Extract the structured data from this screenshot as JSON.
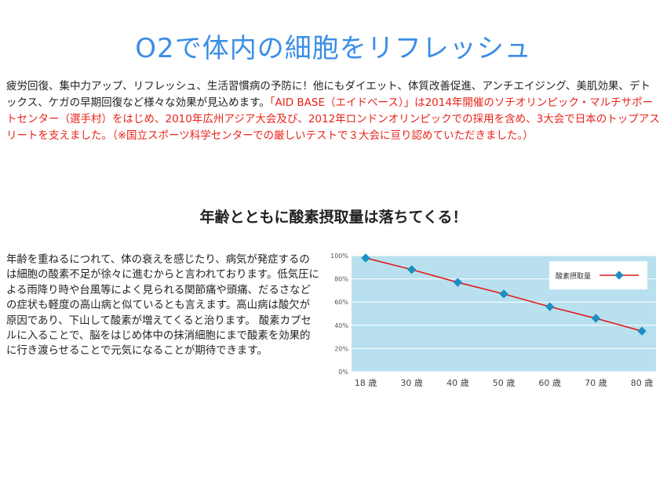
{
  "header": {
    "title": "O2で体内の細胞をリフレッシュ"
  },
  "intro": {
    "text_black": "疲労回復、集中力アップ、リフレッシュ、生活習慣病の予防に！他にもダイエット、体質改善促進、アンチエイジング、美肌効果、デトックス、ケガの早期回復など様々な効果が見込めます。",
    "text_red": "「AID BASE（エイドベース）」は2014年開催のソチオリンピック・マルチサポートセンター（選手村）をはじめ、2010年広州アジア大会及び、2012年ロンドンオリンピックでの採用を含め、3大会で日本のトップアスリートを支えました。（※国立スポーツ科学センターでの厳しいテストで３大会に亘り認めていただきました。）"
  },
  "section": {
    "title": "年齢とともに酸素摂取量は落ちてくる！",
    "body": "年齢を重ねるにつれて、体の衰えを感じたり、病気が発症するのは細胞の酸素不足が徐々に進むからと言われております。低気圧による雨降り時や台風等によく見られる関節痛や頭痛、だるさなどの症状も軽度の高山病と似ているとも言えます。高山病は酸欠が原因であり、下山して酸素が増えてくると治ります。 酸素カプセルに入ることで、脳をはじめ体中の抹消細胞にまで酸素を効果的に行き渡らせることで元気になることが期待できます。"
  },
  "chart_data": {
    "type": "line",
    "categories": [
      "18 歳",
      "30 歳",
      "40 歳",
      "50 歳",
      "60 歳",
      "70 歳",
      "80 歳"
    ],
    "series": [
      {
        "name": "酸素摂取量",
        "values": [
          98,
          88,
          77,
          67,
          56,
          46,
          35
        ]
      }
    ],
    "yticks": [
      "0%",
      "20%",
      "40%",
      "60%",
      "80%",
      "100%"
    ],
    "ylim": [
      0,
      100
    ],
    "grid": true,
    "legend": "top-right",
    "colors": {
      "plot_bg": "#b8e0ef",
      "grid": "#ffffff",
      "line": "#e21b1b",
      "marker": "#1a8fc4"
    }
  }
}
